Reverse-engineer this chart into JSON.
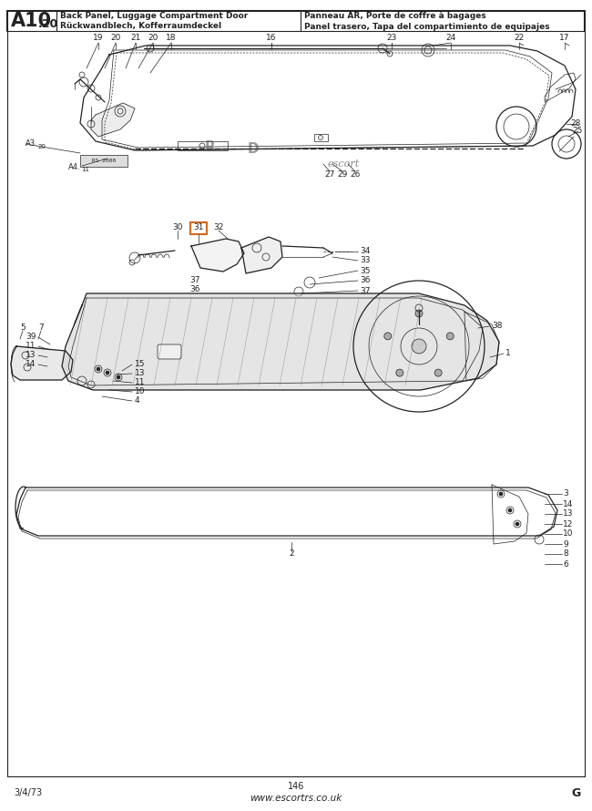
{
  "title_left_line1": "Back Panel, Luggage Compartment Door",
  "title_left_line2": "Rückwandblech, Kofferraumdeckel",
  "title_right_line1": "Panneau AR, Porte de coffre à bagages",
  "title_right_line2": "Panel trasero, Tapa del compartimiento de equipajes",
  "part_number_main": "A10",
  "part_number_sub": ".20",
  "page_number": "146",
  "date": "3/4/73",
  "page_ref": "G",
  "website": "www.escortrs.co.uk",
  "highlight_box_color": "#D2691E",
  "bg_color": "#ffffff",
  "line_color": "#222222",
  "gray_fill": "#c8c8c8",
  "dark_fill": "#888888"
}
